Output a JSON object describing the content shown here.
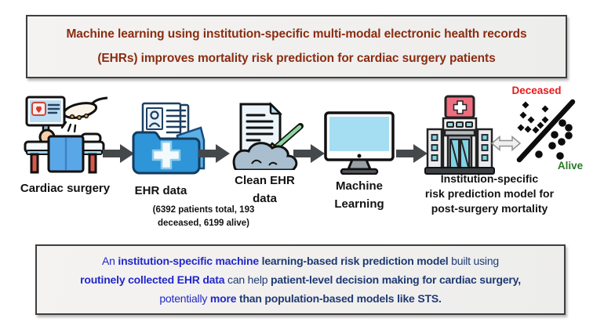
{
  "title_box": {
    "line1": "Machine learning using institution-specific multi-modal electronic health records",
    "line2": "(EHRs) improves mortality risk prediction for cardiac surgery patients",
    "text_color": "#8a2c10"
  },
  "flow": {
    "arrow_color": "#45484b",
    "steps": [
      {
        "id": "cardiac-surgery",
        "label": "Cardiac surgery"
      },
      {
        "id": "ehr-data",
        "label": "EHR data",
        "caption_line1": "(6392 patients total, 193",
        "caption_line2": "deceased, 6199 alive)"
      },
      {
        "id": "clean-ehr-data",
        "label_line1": "Clean EHR",
        "label_line2": "data"
      },
      {
        "id": "machine-learning",
        "label_line1": "Machine",
        "label_line2": "Learning"
      },
      {
        "id": "risk-model",
        "label_line1": "Institution-specific",
        "label_line2": "risk prediction model for",
        "label_line3": "post-surgery mortality"
      }
    ],
    "icons": {
      "step_icons": [
        "cardiac-surgery-icon",
        "ehr-folder-icon",
        "clean-ehr-broom-icon",
        "computer-monitor-icon",
        "hospital-icon"
      ],
      "connector_icon": "arrow-right-icon",
      "exchange_icon": "double-arrow-icon"
    }
  },
  "scatter": {
    "deceased_label": "Deceased",
    "deceased_color": "#e8191c",
    "alive_label": "Alive",
    "alive_color": "#2a7a2a",
    "point_color": "#0d0d0d"
  },
  "conclusion_box": {
    "lines": [
      {
        "runs": [
          {
            "text": "An ",
            "bold": false,
            "color": "#2328c9"
          },
          {
            "text": "institution-specific machine",
            "bold": true,
            "color": "#2328c9"
          },
          {
            "text": " learning-based risk prediction model",
            "bold": true,
            "color": "#1f3a72"
          },
          {
            "text": " built using",
            "bold": false,
            "color": "#1f3a72"
          }
        ]
      },
      {
        "runs": [
          {
            "text": "routinely collected EHR data",
            "bold": true,
            "color": "#2328c9"
          },
          {
            "text": " can help ",
            "bold": false,
            "color": "#1f3a72"
          },
          {
            "text": "patient-level decision making for cardiac surgery,",
            "bold": true,
            "color": "#1f3a72"
          }
        ]
      },
      {
        "runs": [
          {
            "text": "potentially ",
            "bold": false,
            "color": "#2328c9"
          },
          {
            "text": "more",
            "bold": true,
            "color": "#2328c9"
          },
          {
            "text": " than population-based models like STS.",
            "bold": true,
            "color": "#1f3a72"
          }
        ]
      }
    ]
  }
}
